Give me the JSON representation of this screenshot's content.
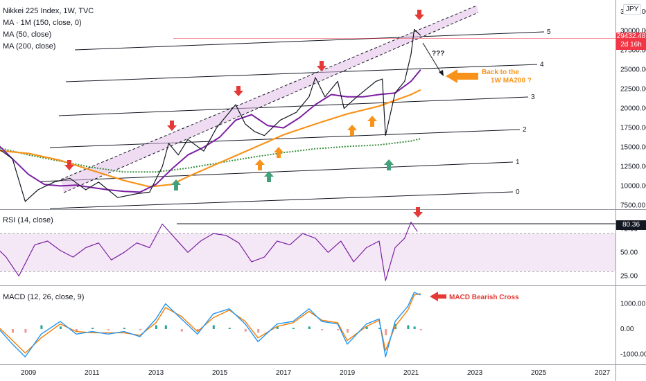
{
  "chart": {
    "symbol": "JPY",
    "legend_main": [
      "Nikkei 225 Index, 1W, TVC",
      "MA · 1M (150, close, 0)",
      "MA (50, close)",
      "MA (200, close)"
    ],
    "rsi_label": "RSI (14, close)",
    "macd_label": "MACD (12, 26, close, 9)",
    "price_label": "29432.48",
    "countdown_label": "2d 16h",
    "rsi_value_label": "80.36"
  },
  "chart_data": [
    {
      "type": "line",
      "panel": "price",
      "title": "Nikkei 225 Index, 1W, TVC",
      "x_ticks": [
        "2009",
        "2011",
        "2013",
        "2015",
        "2017",
        "2019",
        "2021",
        "2023",
        "2025",
        "2027"
      ],
      "y_ticks": [
        "32500.00",
        "30000.00",
        "27500.00",
        "25000.00",
        "22500.00",
        "20000.00",
        "17500.00",
        "15000.00",
        "12500.00",
        "10000.00",
        "7500.00"
      ],
      "ylim": [
        7000,
        34000
      ],
      "series": [
        {
          "name": "Nikkei 225",
          "color": "#131722",
          "x": [
            2008.0,
            2008.5,
            2008.9,
            2009.3,
            2009.8,
            2010.3,
            2010.8,
            2011.2,
            2011.8,
            2012.4,
            2012.8,
            2013.2,
            2013.4,
            2013.7,
            2014.0,
            2014.5,
            2014.9,
            2015.3,
            2015.5,
            2015.8,
            2016.1,
            2016.4,
            2016.9,
            2017.4,
            2017.8,
            2018.0,
            2018.3,
            2018.7,
            2018.9,
            2019.3,
            2019.9,
            2020.1,
            2020.2,
            2020.5,
            2020.8,
            2021.0,
            2021.1,
            2021.3
          ],
          "y": [
            15000,
            13500,
            8000,
            9500,
            10500,
            11000,
            9500,
            10500,
            8500,
            9000,
            9200,
            12500,
            15500,
            14000,
            16000,
            14500,
            17500,
            19500,
            20500,
            18000,
            17000,
            16500,
            18500,
            19500,
            21500,
            24000,
            21500,
            23500,
            20000,
            21500,
            23500,
            23800,
            16500,
            22000,
            23500,
            27000,
            30200,
            29432
          ]
        },
        {
          "name": "MA 150 (1M)",
          "color": "#388e3c",
          "x": [
            2008.0,
            2009.0,
            2010.0,
            2011.0,
            2012.0,
            2013.0,
            2014.0,
            2015.0,
            2016.0,
            2017.0,
            2018.0,
            2019.0,
            2020.0,
            2021.0,
            2021.3
          ],
          "y": [
            15000,
            14000,
            13200,
            12400,
            11800,
            11800,
            12300,
            13000,
            13700,
            14300,
            14800,
            15100,
            15300,
            15800,
            16100
          ]
        },
        {
          "name": "MA 50",
          "color": "#7b1fa2",
          "x": [
            2008.0,
            2008.5,
            2009.0,
            2009.5,
            2010.0,
            2010.5,
            2011.0,
            2011.5,
            2012.0,
            2012.5,
            2013.0,
            2013.5,
            2014.0,
            2014.5,
            2015.0,
            2015.5,
            2016.0,
            2016.5,
            2017.0,
            2017.5,
            2018.0,
            2018.5,
            2019.0,
            2019.5,
            2020.0,
            2020.5,
            2021.0,
            2021.3
          ],
          "y": [
            15500,
            13500,
            11500,
            10200,
            10000,
            10100,
            9800,
            9500,
            9300,
            9200,
            10200,
            12200,
            14000,
            15000,
            16300,
            18500,
            19200,
            17800,
            17500,
            18800,
            20500,
            21800,
            21500,
            21500,
            21800,
            22000,
            23500,
            25000
          ]
        },
        {
          "name": "MA 200",
          "color": "#f7931a",
          "x": [
            2008.0,
            2009.0,
            2010.0,
            2011.0,
            2012.0,
            2012.8,
            2013.5,
            2014.0,
            2015.0,
            2016.0,
            2017.0,
            2018.0,
            2019.0,
            2020.0,
            2021.0,
            2021.3
          ],
          "y": [
            14600,
            14200,
            13300,
            12000,
            10700,
            9900,
            10200,
            11200,
            13000,
            14800,
            16600,
            18000,
            19300,
            20300,
            21800,
            22400
          ]
        }
      ],
      "annotations": [
        "Back to the 1W MA200 ?",
        "???"
      ],
      "channel_lines": [
        "0",
        "1",
        "2",
        "3",
        "4",
        "5"
      ]
    },
    {
      "type": "line",
      "panel": "rsi",
      "title": "RSI (14, close)",
      "y_ticks": [
        "75.00",
        "50.00",
        "25.00"
      ],
      "ylim": [
        15,
        95
      ],
      "series": [
        {
          "name": "RSI",
          "color": "#7b1fa2",
          "x": [
            2008.0,
            2008.3,
            2008.7,
            2009.2,
            2009.6,
            2010.0,
            2010.4,
            2010.8,
            2011.2,
            2011.6,
            2012.0,
            2012.4,
            2012.8,
            2013.2,
            2013.6,
            2014.0,
            2014.4,
            2014.8,
            2015.2,
            2015.6,
            2016.0,
            2016.4,
            2016.8,
            2017.2,
            2017.6,
            2018.0,
            2018.4,
            2018.8,
            2019.2,
            2019.6,
            2020.0,
            2020.2,
            2020.5,
            2020.8,
            2021.0,
            2021.2
          ],
          "y": [
            55,
            45,
            25,
            58,
            62,
            52,
            45,
            55,
            60,
            42,
            50,
            60,
            55,
            80,
            65,
            50,
            62,
            70,
            68,
            60,
            40,
            45,
            62,
            58,
            70,
            65,
            50,
            62,
            40,
            55,
            62,
            20,
            55,
            65,
            82,
            72
          ]
        }
      ],
      "levels": [
        70,
        30
      ],
      "marked_value": 80.36
    },
    {
      "type": "line",
      "panel": "macd",
      "title": "MACD (12, 26, close, 9)",
      "y_ticks": [
        "1000.00",
        "0.00",
        "-1000.00"
      ],
      "ylim": [
        -1400,
        1700
      ],
      "series": [
        {
          "name": "MACD",
          "color": "#2196f3",
          "x": [
            2008.0,
            2008.5,
            2008.9,
            2009.4,
            2010.0,
            2010.5,
            2011.0,
            2011.5,
            2012.0,
            2012.5,
            2013.0,
            2013.3,
            2013.8,
            2014.3,
            2014.8,
            2015.3,
            2015.8,
            2016.2,
            2016.8,
            2017.3,
            2017.8,
            2018.2,
            2018.7,
            2019.0,
            2019.6,
            2020.0,
            2020.2,
            2020.5,
            2020.9,
            2021.1,
            2021.3
          ],
          "y": [
            100,
            -600,
            -1100,
            -200,
            300,
            -200,
            -100,
            -200,
            -100,
            -300,
            400,
            1000,
            400,
            -200,
            600,
            800,
            200,
            -500,
            200,
            300,
            800,
            300,
            200,
            -600,
            200,
            400,
            -1100,
            300,
            900,
            1450,
            1350
          ]
        },
        {
          "name": "Signal",
          "color": "#f57c00",
          "x": [
            2008.0,
            2008.5,
            2008.9,
            2009.4,
            2010.0,
            2010.5,
            2011.0,
            2011.5,
            2012.0,
            2012.5,
            2013.0,
            2013.3,
            2013.8,
            2014.3,
            2014.8,
            2015.3,
            2015.8,
            2016.2,
            2016.8,
            2017.3,
            2017.8,
            2018.2,
            2018.7,
            2019.0,
            2019.6,
            2020.0,
            2020.2,
            2020.5,
            2020.9,
            2021.1,
            2021.3
          ],
          "y": [
            150,
            -450,
            -950,
            -350,
            200,
            -100,
            -150,
            -150,
            -150,
            -250,
            250,
            850,
            500,
            -100,
            450,
            750,
            300,
            -350,
            100,
            250,
            700,
            350,
            250,
            -450,
            100,
            350,
            -850,
            100,
            750,
            1350,
            1400
          ]
        }
      ],
      "annotations": [
        "MACD Bearish Cross"
      ]
    }
  ],
  "colors": {
    "price_line": "#131722",
    "ma50": "#7b1fa2",
    "ma200": "#f7931a",
    "ma150": "#388e3c",
    "channel_fill": "#e1bee7",
    "down_arrow": "#e53935",
    "up_arrow_orange": "#f7931a",
    "up_arrow_green": "#43a07a",
    "price_tag": "#f23645"
  },
  "markers": {
    "down_years": [
      2010.3,
      2013.4,
      2015.5,
      2018.0,
      2021.1
    ],
    "up_orange_years": [
      2016.1,
      2016.7,
      2019.0,
      2019.6
    ],
    "up_green_years": [
      2013.5,
      2016.4,
      2020.2
    ]
  }
}
